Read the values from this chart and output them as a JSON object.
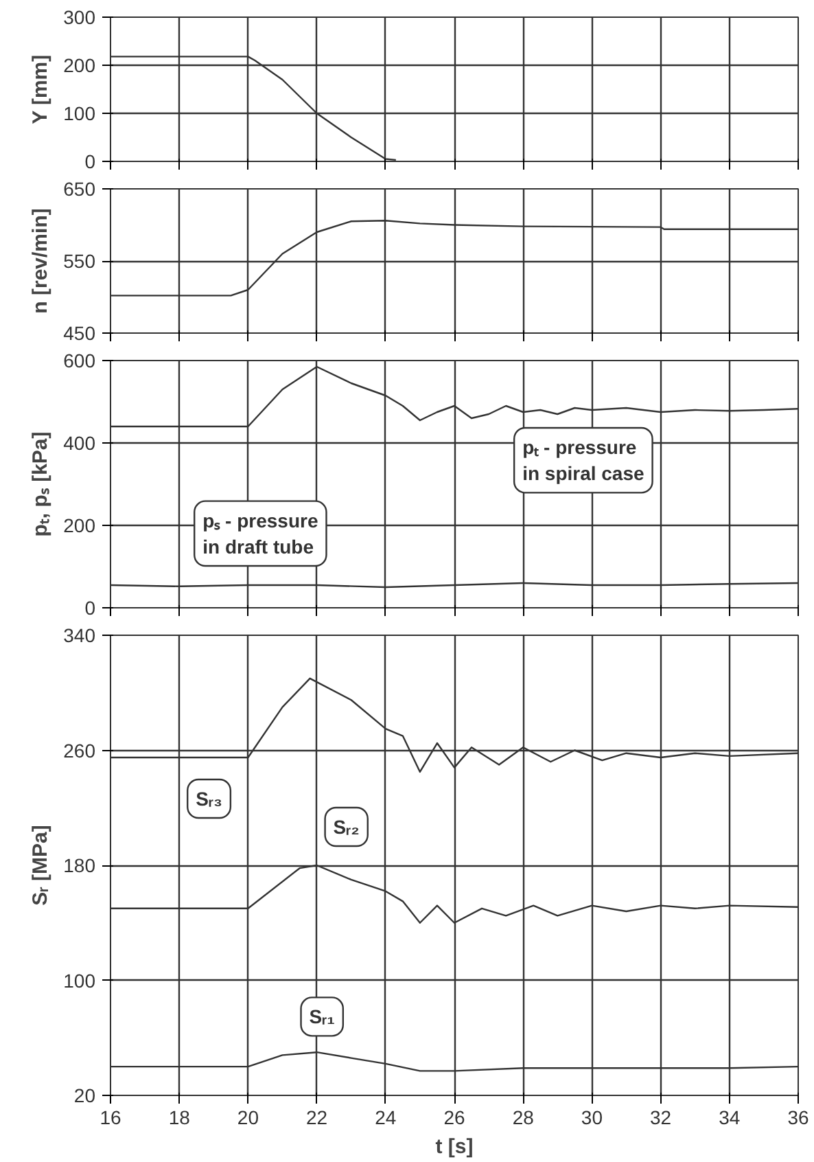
{
  "chart_data": [
    {
      "type": "line",
      "ylabel": "Y [mm]",
      "xlim": [
        16,
        36
      ],
      "xticks": [
        16,
        18,
        20,
        22,
        24,
        26,
        28,
        30,
        32,
        34,
        36
      ],
      "ylim": [
        0,
        300
      ],
      "yticks": [
        0,
        100,
        200,
        300
      ],
      "tick_labels": "y",
      "grid": true,
      "series": [
        {
          "color": "#333333",
          "x": [
            16,
            20,
            20.2,
            21,
            22,
            23,
            24,
            24.3
          ],
          "values": [
            218,
            218,
            210,
            170,
            100,
            50,
            5,
            3
          ]
        }
      ]
    },
    {
      "type": "line",
      "ylabel": "n [rev/min]",
      "xlim": [
        16,
        36
      ],
      "xticks": [
        16,
        18,
        20,
        22,
        24,
        26,
        28,
        30,
        32,
        34,
        36
      ],
      "ylim": [
        450,
        650
      ],
      "yticks": [
        450,
        550,
        650
      ],
      "tick_labels": "y",
      "grid": true,
      "series": [
        {
          "color": "#333333",
          "x": [
            16,
            19.5,
            20,
            21,
            22,
            23,
            24,
            25,
            26,
            28,
            32,
            32.1,
            36
          ],
          "values": [
            502,
            502,
            510,
            560,
            590,
            605,
            606,
            602,
            600,
            598,
            597,
            594,
            594
          ]
        }
      ]
    },
    {
      "type": "line",
      "ylabel": "pₜ, pₛ [kPa]",
      "xlim": [
        16,
        36
      ],
      "xticks": [
        16,
        18,
        20,
        22,
        24,
        26,
        28,
        30,
        32,
        34,
        36
      ],
      "ylim": [
        0,
        600
      ],
      "yticks": [
        0,
        200,
        400,
        600
      ],
      "tick_labels": "y",
      "grid": true,
      "series": [
        {
          "color": "#333333",
          "x": [
            16,
            20,
            21,
            22,
            23,
            24,
            24.5,
            25,
            25.5,
            26,
            26.5,
            27,
            27.5,
            28,
            28.5,
            29,
            29.5,
            30,
            31,
            32,
            33,
            34,
            35,
            36
          ],
          "values": [
            440,
            440,
            530,
            585,
            545,
            515,
            490,
            455,
            475,
            490,
            460,
            470,
            490,
            475,
            480,
            470,
            485,
            480,
            485,
            475,
            480,
            478,
            480,
            483
          ]
        },
        {
          "color": "#333333",
          "x": [
            16,
            18,
            20,
            22,
            24,
            26,
            28,
            30,
            32,
            34,
            36
          ],
          "values": [
            55,
            52,
            55,
            55,
            50,
            55,
            60,
            55,
            55,
            58,
            60
          ]
        }
      ],
      "annotations": [
        {
          "text": "pₛ - pressure\nin draft tube",
          "x": 18.2,
          "y": 55
        },
        {
          "text": "pₜ - pressure\nin spiral case",
          "x": 27.5,
          "y": 490
        }
      ]
    },
    {
      "type": "line",
      "ylabel": "Sᵣ [MPa]",
      "xlabel": "t [s]",
      "xlim": [
        16,
        36
      ],
      "xticks": [
        16,
        18,
        20,
        22,
        24,
        26,
        28,
        30,
        32,
        34,
        36
      ],
      "ylim": [
        20,
        340
      ],
      "yticks": [
        20,
        100,
        180,
        260,
        340
      ],
      "grid": true,
      "series": [
        {
          "color": "#333333",
          "x": [
            16,
            20,
            21,
            21.8,
            23,
            24,
            24.5,
            25,
            25.5,
            26,
            26.5,
            27.3,
            28,
            28.8,
            29.5,
            30.3,
            31,
            32,
            33,
            34,
            36
          ],
          "values": [
            255,
            255,
            290,
            310,
            295,
            275,
            270,
            245,
            265,
            248,
            262,
            250,
            262,
            252,
            260,
            253,
            258,
            255,
            258,
            256,
            258
          ]
        },
        {
          "color": "#333333",
          "x": [
            16,
            20,
            21.5,
            22,
            23,
            24,
            24.5,
            25,
            25.5,
            26,
            26.8,
            27.5,
            28.3,
            29,
            30,
            31,
            32,
            33,
            34,
            36
          ],
          "values": [
            150,
            150,
            178,
            180,
            170,
            162,
            155,
            140,
            152,
            140,
            150,
            145,
            152,
            145,
            152,
            148,
            152,
            150,
            152,
            151
          ]
        },
        {
          "color": "#333333",
          "x": [
            16,
            20,
            21,
            22,
            23,
            24,
            25,
            26,
            28,
            30,
            32,
            34,
            36
          ],
          "values": [
            40,
            40,
            48,
            50,
            46,
            42,
            37,
            37,
            39,
            39,
            39,
            39,
            40
          ]
        }
      ],
      "annotations": [
        {
          "text": "Sᵣ₃",
          "x": 18,
          "y": 255
        },
        {
          "text": "Sᵣ₂",
          "x": 22,
          "y": 180
        },
        {
          "text": "Sᵣ₁",
          "x": 21.3,
          "y": 48
        }
      ]
    }
  ]
}
